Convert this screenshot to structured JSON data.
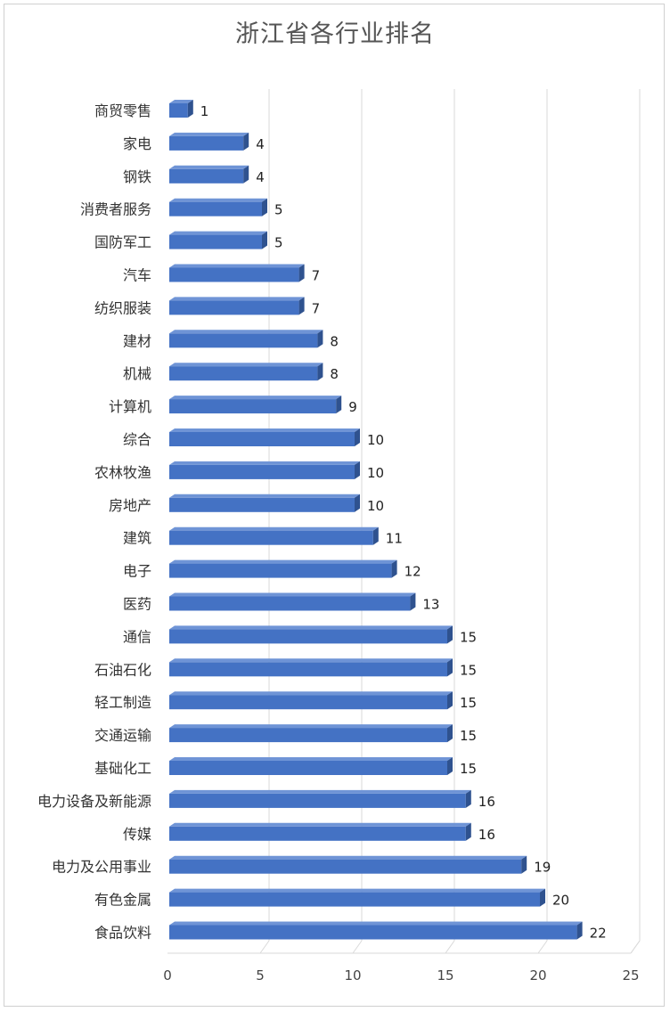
{
  "chart_data": {
    "type": "bar",
    "orientation": "horizontal",
    "title": "浙江省各行业排名",
    "xlabel": "",
    "ylabel": "",
    "categories": [
      "商贸零售",
      "家电",
      "钢铁",
      "消费者服务",
      "国防军工",
      "汽车",
      "纺织服装",
      "建材",
      "机械",
      "计算机",
      "综合",
      "农林牧渔",
      "房地产",
      "建筑",
      "电子",
      "医药",
      "通信",
      "石油石化",
      "轻工制造",
      "交通运输",
      "基础化工",
      "电力设备及新能源",
      "传媒",
      "电力及公用事业",
      "有色金属",
      "食品饮料"
    ],
    "values": [
      1,
      4,
      4,
      5,
      5,
      7,
      7,
      8,
      8,
      9,
      10,
      10,
      10,
      11,
      12,
      13,
      15,
      15,
      15,
      15,
      15,
      16,
      16,
      19,
      20,
      22
    ],
    "xlim": [
      0,
      25
    ],
    "xticks": [
      0,
      5,
      10,
      15,
      20,
      25
    ],
    "grid": true,
    "legend": "none",
    "colors": {
      "bar_front": "#4472C4",
      "bar_top": "#6F94D6",
      "bar_side": "#2F528F",
      "grid": "#d9d9d9"
    }
  }
}
